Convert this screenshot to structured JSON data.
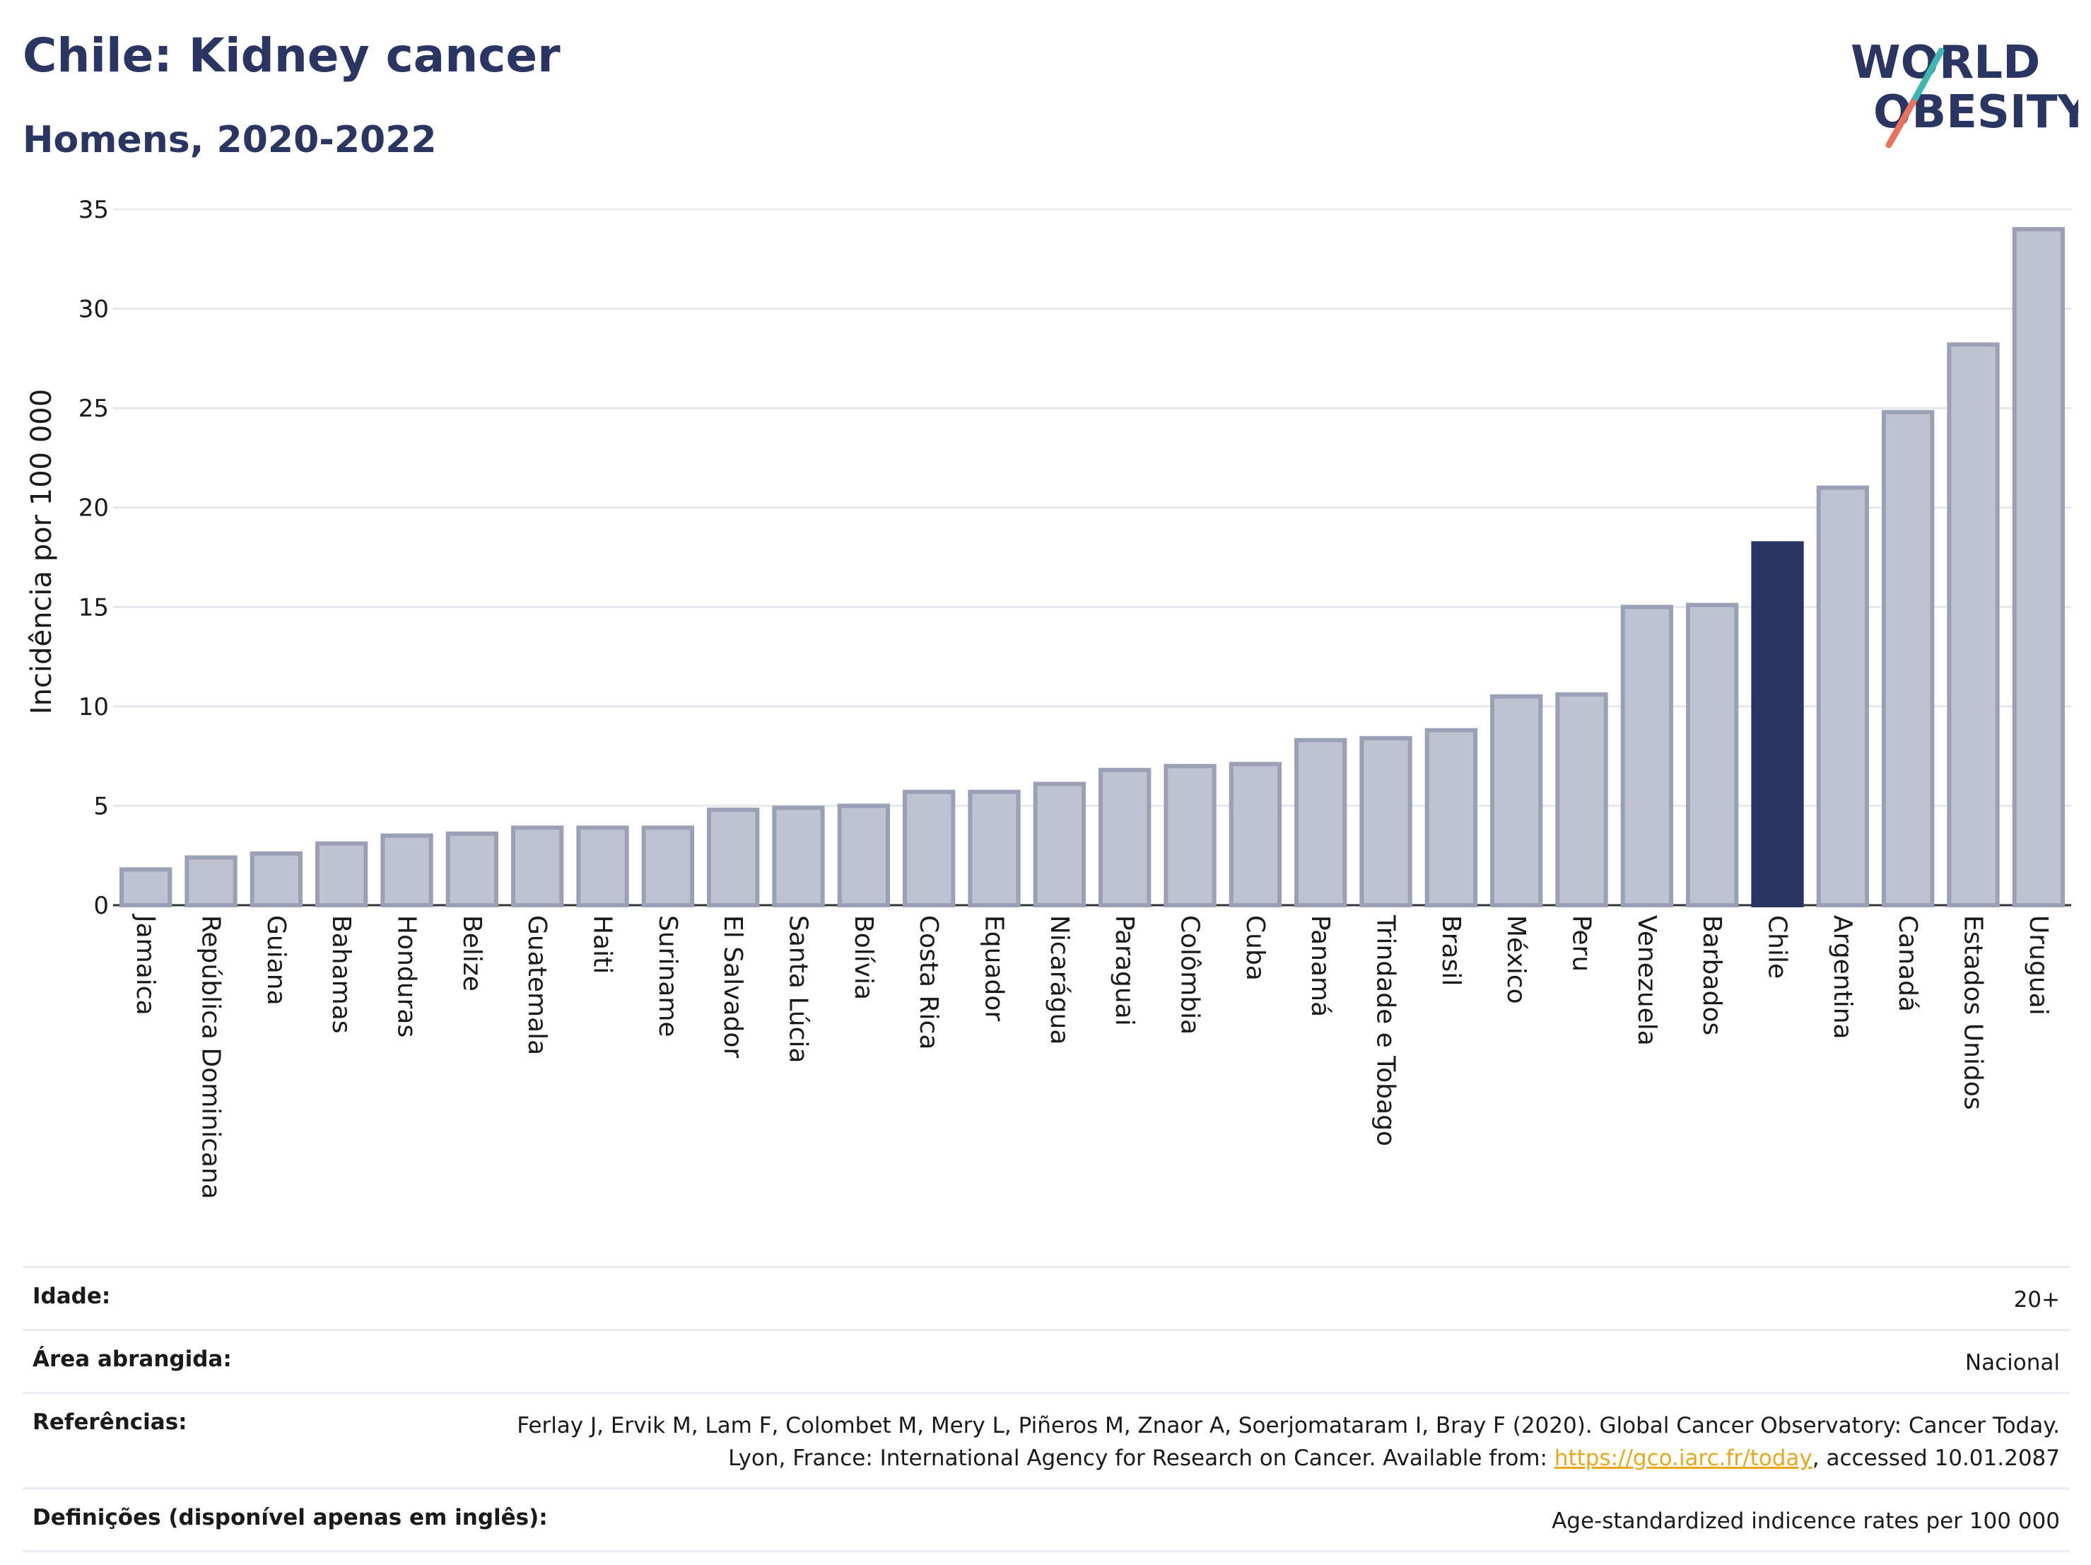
{
  "header": {
    "title": "Chile: Kidney cancer",
    "subtitle": "Homens, 2020-2022"
  },
  "logo": {
    "line1": "WORLD",
    "line2": "OBESITY"
  },
  "chart_data": {
    "type": "bar",
    "ylabel": "Incidência por 100 000",
    "ylim": [
      0,
      35
    ],
    "yticks": [
      0,
      5,
      10,
      15,
      20,
      25,
      30,
      35
    ],
    "grid": true,
    "highlight": "Chile",
    "colors": {
      "bar": "#bfc2d0",
      "bar_edge": "#9aa0b6",
      "highlight": "#2b3561",
      "grid": "#e6e8ee",
      "axis": "#333333"
    },
    "categories": [
      "Jamaica",
      "República Dominicana",
      "Guiana",
      "Bahamas",
      "Honduras",
      "Belize",
      "Guatemala",
      "Haiti",
      "Suriname",
      "El Salvador",
      "Santa Lúcia",
      "Bolívia",
      "Costa Rica",
      "Equador",
      "Nicarágua",
      "Paraguai",
      "Colômbia",
      "Cuba",
      "Panamá",
      "Trindade e Tobago",
      "Brasil",
      "México",
      "Peru",
      "Venezuela",
      "Barbados",
      "Chile",
      "Argentina",
      "Canadá",
      "Estados Unidos",
      "Uruguai"
    ],
    "values": [
      1.8,
      2.4,
      2.6,
      3.1,
      3.5,
      3.6,
      3.9,
      3.9,
      3.9,
      4.8,
      4.9,
      5.0,
      5.7,
      5.7,
      6.1,
      6.8,
      7.0,
      7.1,
      8.3,
      8.4,
      8.8,
      10.5,
      10.6,
      15.0,
      15.1,
      18.2,
      21.0,
      24.8,
      28.2,
      34.0
    ]
  },
  "meta": {
    "age_label": "Idade:",
    "age_value": "20+",
    "area_label": "Área abrangida:",
    "area_value": "Nacional",
    "ref_label": "Referências:",
    "ref_text_1": "Ferlay J, Ervik M, Lam F, Colombet M, Mery L, Piñeros M, Znaor A, Soerjomataram I, Bray F (2020). Global Cancer Observatory: Cancer Today. Lyon, France: International Agency for Research on Cancer. Available from: ",
    "ref_link": "https://gco.iarc.fr/today",
    "ref_text_2": ", accessed 10.01.2087",
    "def_label": "Definições (disponível apenas em inglês):",
    "def_value": "Age-standardized indicence rates per 100 000"
  }
}
